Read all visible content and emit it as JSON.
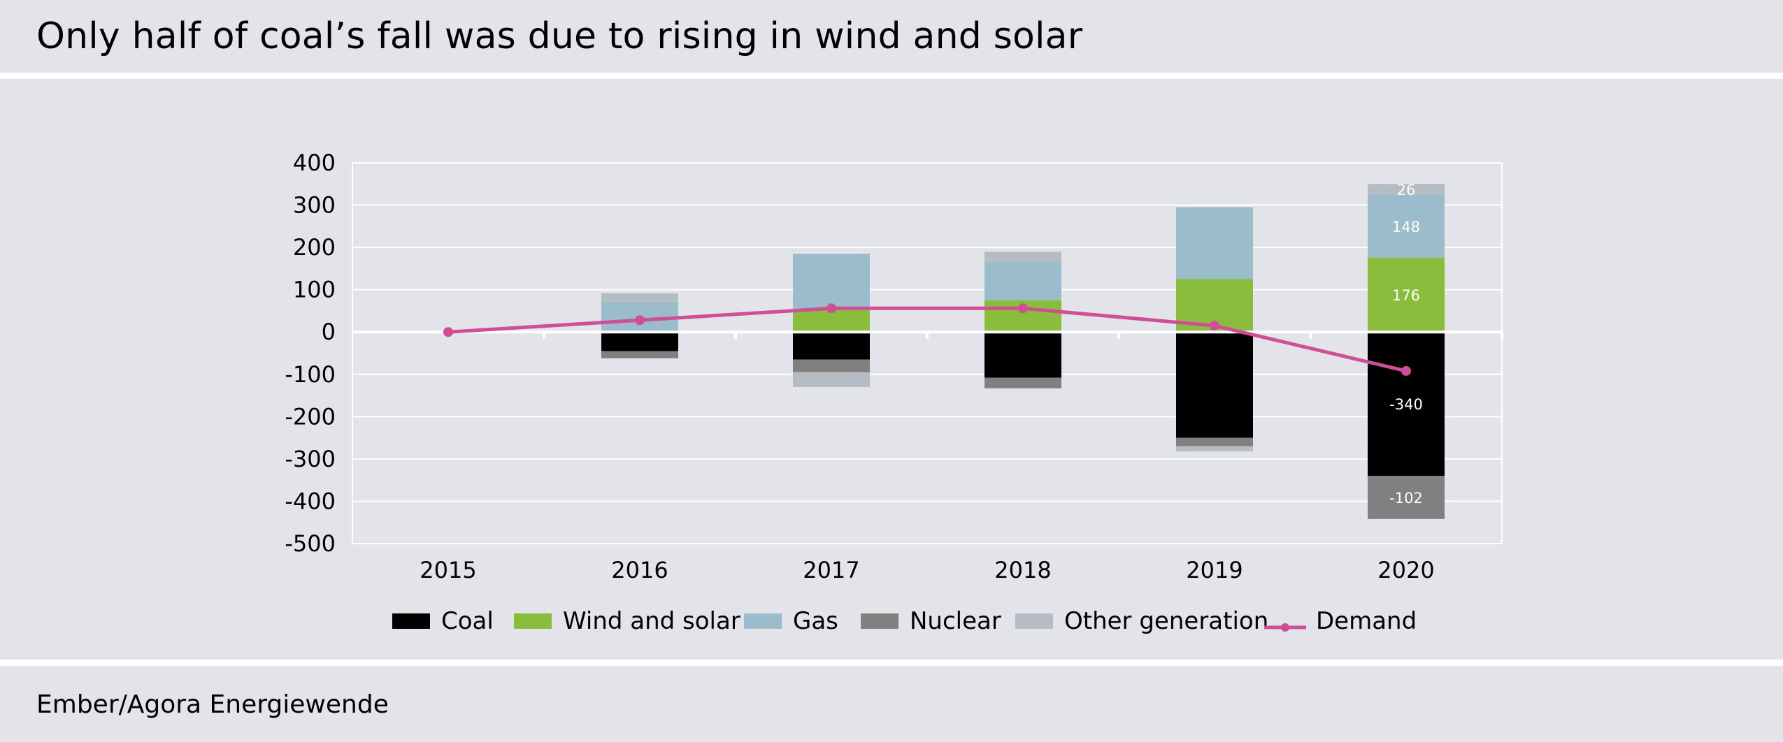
{
  "title": "Only half of coal’s fall was due to rising in wind and solar",
  "source": "Ember/Agora Energiewende",
  "colors": {
    "coal": "#000000",
    "wind_solar": "#8bbd3c",
    "gas": "#9bbccb",
    "nuclear": "#808080",
    "other": "#b5bcc4",
    "demand": "#cf4f96",
    "background": "#e3e4e9",
    "grid": "#ffffff"
  },
  "legend": [
    {
      "key": "coal",
      "label": "Coal",
      "type": "swatch"
    },
    {
      "key": "wind_solar",
      "label": "Wind and solar",
      "type": "swatch"
    },
    {
      "key": "gas",
      "label": "Gas",
      "type": "swatch"
    },
    {
      "key": "nuclear",
      "label": "Nuclear",
      "type": "swatch"
    },
    {
      "key": "other",
      "label": "Other generation",
      "type": "swatch"
    },
    {
      "key": "demand",
      "label": "Demand",
      "type": "line"
    }
  ],
  "chart_data": {
    "type": "bar",
    "stacked": true,
    "categories": [
      "2015",
      "2016",
      "2017",
      "2018",
      "2019",
      "2020"
    ],
    "ylim": [
      -500,
      400
    ],
    "yticks": [
      400,
      300,
      200,
      100,
      0,
      -100,
      -200,
      -300,
      -400,
      -500
    ],
    "grid": true,
    "legend_position": "bottom",
    "series": [
      {
        "name": "Coal",
        "key": "coal",
        "values": [
          0,
          -45,
          -65,
          -108,
          -250,
          -340
        ]
      },
      {
        "name": "Wind and solar",
        "key": "wind_solar",
        "values": [
          0,
          0,
          55,
          75,
          125,
          176
        ]
      },
      {
        "name": "Gas",
        "key": "gas",
        "values": [
          0,
          72,
          130,
          90,
          170,
          148
        ]
      },
      {
        "name": "Nuclear",
        "key": "nuclear",
        "values": [
          0,
          -17,
          -30,
          -25,
          -20,
          -102
        ]
      },
      {
        "name": "Other generation",
        "key": "other",
        "values": [
          0,
          20,
          -35,
          25,
          -12,
          26
        ]
      },
      {
        "name": "Demand",
        "key": "demand",
        "type": "line",
        "values": [
          0,
          28,
          56,
          56,
          15,
          -92
        ]
      }
    ],
    "data_labels": [
      {
        "category": "2020",
        "series": "Other generation",
        "text": "26"
      },
      {
        "category": "2020",
        "series": "Gas",
        "text": "148"
      },
      {
        "category": "2020",
        "series": "Wind and solar",
        "text": "176"
      },
      {
        "category": "2020",
        "series": "Coal",
        "text": "-340"
      },
      {
        "category": "2020",
        "series": "Nuclear",
        "text": "-102"
      }
    ]
  }
}
